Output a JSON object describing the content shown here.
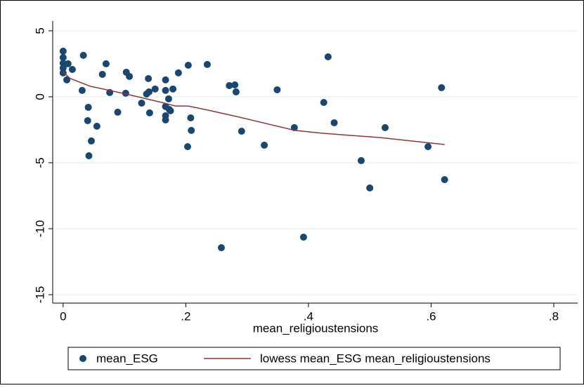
{
  "chart_data": {
    "type": "scatter",
    "xlabel": "mean_religioustensions",
    "xlim": [
      -0.017,
      0.839
    ],
    "ylim": [
      -15.64,
      5.74
    ],
    "xticks": [
      0,
      {
        "value": 0.2,
        "label": ".2"
      },
      {
        "value": 0.4,
        "label": ".4"
      },
      {
        "value": 0.6,
        "label": ".6"
      },
      {
        "value": 0.8,
        "label": ".8"
      }
    ],
    "yticks": [
      -15,
      -10,
      -5,
      0,
      5
    ],
    "grid": true,
    "series": [
      {
        "name": "mean_ESG",
        "color": "#1a476f",
        "x": [
          0,
          0,
          0,
          0,
          0,
          0.008,
          0.006,
          0.015,
          0.033,
          0.031,
          0.041,
          0.04,
          0.042,
          0.046,
          0.055,
          0.064,
          0.07,
          0.076,
          0.089,
          0.103,
          0.108,
          0.102,
          0.128,
          0.139,
          0.136,
          0.14,
          0.141,
          0.15,
          0.167,
          0.167,
          0.167,
          0.167,
          0.167,
          0.172,
          0.173,
          0.175,
          0.179,
          0.188,
          0.204,
          0.203,
          0.208,
          0.209,
          0.235,
          0.258,
          0.271,
          0.28,
          0.282,
          0.291,
          0.328,
          0.349,
          0.377,
          0.392,
          0.425,
          0.432,
          0.442,
          0.486,
          0.5,
          0.525,
          0.595,
          0.617,
          0.622
        ],
        "values": [
          3.46,
          2.98,
          2.55,
          2.18,
          1.81,
          2.5,
          1.28,
          2.07,
          3.14,
          0.48,
          -0.8,
          -1.81,
          -4.47,
          -3.35,
          -2.23,
          1.7,
          2.5,
          0.32,
          -1.17,
          1.86,
          1.54,
          0.27,
          -0.48,
          1.38,
          0.21,
          0.37,
          -1.22,
          0.59,
          1.28,
          0.48,
          -0.74,
          -1.44,
          -1.76,
          -0.16,
          -0.96,
          -1.06,
          0.59,
          1.81,
          2.39,
          -3.78,
          -1.6,
          -2.55,
          2.45,
          -11.44,
          0.85,
          0.9,
          0.37,
          -2.61,
          -3.67,
          0.53,
          -2.34,
          -10.64,
          -0.43,
          3.03,
          -1.97,
          -4.84,
          -6.91,
          -2.34,
          -3.78,
          0.69,
          -6.28
        ]
      },
      {
        "name": "lowess mean_ESG mean_religioustensions",
        "color": "#90353b",
        "type": "line",
        "x": [
          0,
          0.011,
          0.044,
          0.097,
          0.161,
          0.183,
          0.204,
          0.241,
          0.287,
          0.378,
          0.424,
          0.516,
          0.622
        ],
        "values": [
          1.9,
          1.4,
          0.8,
          0.27,
          -0.43,
          -0.7,
          -0.7,
          -1.06,
          -1.54,
          -2.55,
          -2.77,
          -3.09,
          -3.62
        ]
      }
    ]
  }
}
